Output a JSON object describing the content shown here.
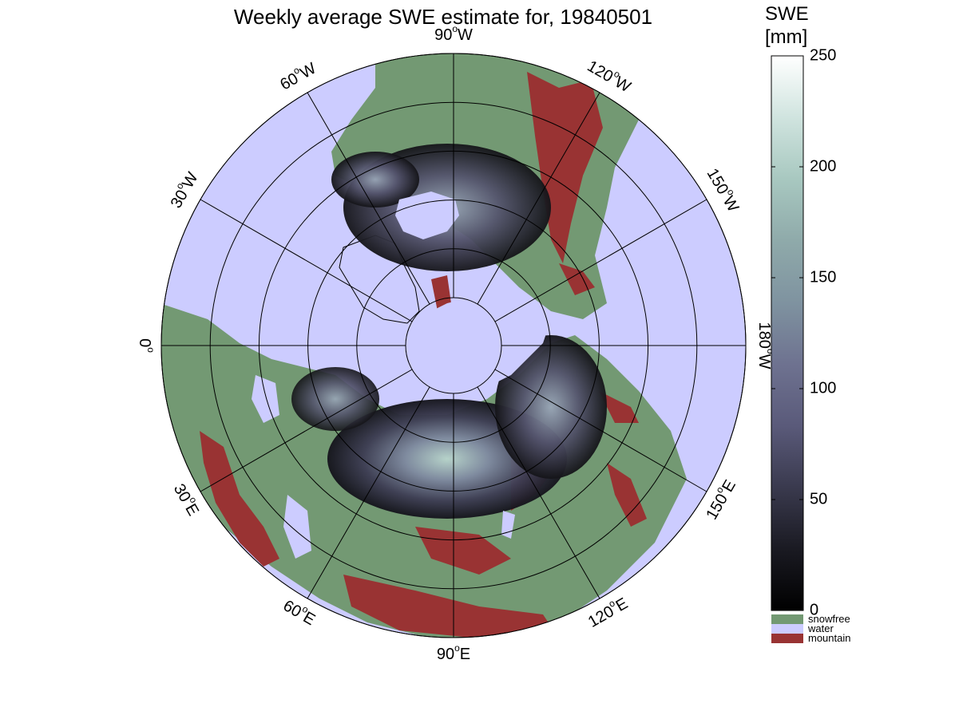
{
  "title": "Weekly average SWE estimate for, 19840501",
  "map": {
    "projection": "north polar stereographic",
    "graticule": {
      "meridian_labels": [
        {
          "num": "90",
          "dir": "W",
          "angle": -90
        },
        {
          "num": "120",
          "dir": "W",
          "angle": -60
        },
        {
          "num": "150",
          "dir": "W",
          "angle": -30
        },
        {
          "num": "180",
          "dir": "W",
          "angle": 0
        },
        {
          "num": "150",
          "dir": "E",
          "angle": 30
        },
        {
          "num": "120",
          "dir": "E",
          "angle": 60
        },
        {
          "num": "90",
          "dir": "E",
          "angle": 90
        },
        {
          "num": "60",
          "dir": "E",
          "angle": 120
        },
        {
          "num": "30",
          "dir": "E",
          "angle": 150
        },
        {
          "num": "0",
          "dir": "",
          "angle": 180
        },
        {
          "num": "30",
          "dir": "W",
          "angle": 210
        },
        {
          "num": "60",
          "dir": "W",
          "angle": 240
        }
      ],
      "latitude_circles": 6
    },
    "colors": {
      "water": "#ccccff",
      "snowfree": "#739973",
      "mountain": "#993333",
      "grid": "#000000"
    }
  },
  "colorbar": {
    "title_line1": "SWE",
    "title_line2": "[mm]",
    "ticks": [
      "0",
      "50",
      "100",
      "150",
      "200",
      "250"
    ],
    "range": [
      0,
      250
    ],
    "gradient": [
      "#000000",
      "#1a1a22",
      "#3a3a4e",
      "#5a5a7a",
      "#6e7290",
      "#7f93a0",
      "#8faaaa",
      "#a8c8c0",
      "#d0e4df",
      "#ffffff"
    ],
    "categories": [
      {
        "label": "snowfree",
        "color": "#739973"
      },
      {
        "label": "water",
        "color": "#ccccff"
      },
      {
        "label": "mountain",
        "color": "#993333"
      }
    ]
  }
}
